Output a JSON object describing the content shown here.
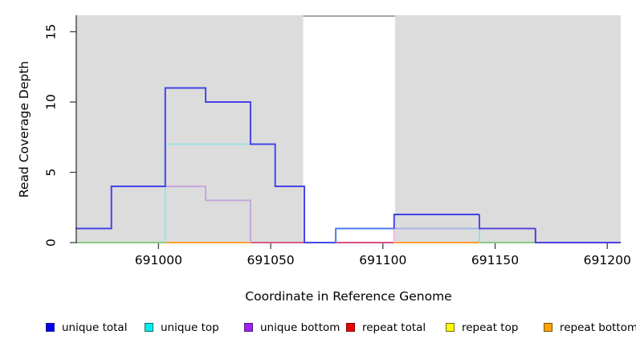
{
  "chart_data": {
    "type": "line",
    "subtype": "step-coverage",
    "title": "",
    "xlabel": "Coordinate in Reference Genome",
    "ylabel": "Read Coverage Depth",
    "xlim": [
      690963,
      691206
    ],
    "ylim": [
      0,
      16.2
    ],
    "x_ticks": [
      691000,
      691050,
      691100,
      691150,
      691200
    ],
    "y_ticks": [
      0,
      5,
      10,
      15
    ],
    "grid": false,
    "legend_position": "bottom",
    "shade_color": "#DCDCDC",
    "shaded_regions": [
      {
        "from": 690963,
        "to": 691064.5
      },
      {
        "from": 691105.4,
        "to": 691206
      }
    ],
    "gap_top_border": {
      "from": 691064.5,
      "to": 691105.4,
      "color": "#8A8A8A"
    },
    "series": [
      {
        "name": "unique total",
        "color": "#0000EE",
        "steps": [
          [
            690963,
            1
          ],
          [
            690979,
            4
          ],
          [
            691003,
            11
          ],
          [
            691021,
            10
          ],
          [
            691041,
            7
          ],
          [
            691052,
            4
          ],
          [
            691065,
            0
          ],
          [
            691079,
            1
          ],
          [
            691105,
            2
          ],
          [
            691143,
            1
          ],
          [
            691168,
            0
          ]
        ],
        "end": 691206
      },
      {
        "name": "unique top",
        "color": "#00EEEE",
        "steps": [
          [
            690963,
            0
          ],
          [
            691003,
            7
          ],
          [
            691052,
            4
          ],
          [
            691065,
            0
          ],
          [
            691105,
            1
          ],
          [
            691143,
            0
          ]
        ],
        "end": 691206
      },
      {
        "name": "unique bottom",
        "color": "#A020F0",
        "steps": [
          [
            690963,
            0
          ],
          [
            691003,
            4
          ],
          [
            691021,
            3
          ],
          [
            691041,
            0
          ],
          [
            691105,
            1
          ],
          [
            691168,
            0
          ]
        ],
        "end": 691206
      },
      {
        "name": "repeat total",
        "color": "#EE0000",
        "steps": [
          [
            690963,
            0
          ]
        ],
        "end": 691206
      },
      {
        "name": "repeat top",
        "color": "#FFFF00",
        "steps": [
          [
            690963,
            0
          ]
        ],
        "end": 691206
      },
      {
        "name": "repeat bottom",
        "color": "#FFA500",
        "steps": [
          [
            690963,
            0
          ]
        ],
        "end": 691206
      }
    ],
    "render_layers": {
      "baseline_segments": [
        {
          "from": 690963,
          "to": 691003,
          "color": "#85C985"
        },
        {
          "from": 691003,
          "to": 691041,
          "color": "#FF9E2A"
        },
        {
          "from": 691041,
          "to": 691065,
          "color": "#D06080"
        },
        {
          "from": 691079,
          "to": 691105,
          "color": "#D2537A"
        },
        {
          "from": 691105,
          "to": 691143,
          "color": "#FF9E2A"
        },
        {
          "from": 691143,
          "to": 691168,
          "color": "#85C985"
        }
      ],
      "polylines": [
        {
          "name": "unique-top-left",
          "color": "#9FE2E2",
          "points": [
            [
              691003,
              0
            ],
            [
              691003,
              7
            ],
            [
              691041,
              7
            ]
          ]
        },
        {
          "name": "unique-bottom-left",
          "color": "#C7A7DB",
          "points": [
            [
              691003,
              4
            ],
            [
              691021,
              4
            ],
            [
              691021,
              3
            ],
            [
              691041,
              3
            ],
            [
              691041,
              0
            ]
          ]
        },
        {
          "name": "unique-top-right",
          "color": "#A9B6E8",
          "points": [
            [
              691105,
              1
            ],
            [
              691143,
              1
            ]
          ]
        },
        {
          "name": "unique-top-right-drop",
          "color": "#8FE0E0",
          "points": [
            [
              691143,
              1
            ],
            [
              691143,
              0
            ]
          ]
        },
        {
          "name": "unique-bottom-right-rise",
          "color": "#ECB2E4",
          "points": [
            [
              691105,
              0
            ],
            [
              691105,
              1
            ]
          ]
        },
        {
          "name": "unique-total-main",
          "color": "#4444E8",
          "points": [
            [
              690963,
              1
            ],
            [
              690979,
              1
            ],
            [
              690979,
              4
            ],
            [
              691003,
              4
            ],
            [
              691003,
              11
            ],
            [
              691021,
              11
            ],
            [
              691021,
              10
            ],
            [
              691041,
              10
            ],
            [
              691041,
              7
            ],
            [
              691052,
              7
            ],
            [
              691052,
              4
            ],
            [
              691065,
              4
            ],
            [
              691065,
              0
            ],
            [
              691079,
              0
            ]
          ]
        },
        {
          "name": "unique-total-gap-step",
          "color": "#4D7BF2",
          "points": [
            [
              691079,
              0
            ],
            [
              691079,
              1
            ],
            [
              691105,
              1
            ]
          ]
        },
        {
          "name": "unique-total-level2",
          "color": "#4040E8",
          "points": [
            [
              691105,
              1
            ],
            [
              691105,
              2
            ],
            [
              691143,
              2
            ]
          ]
        },
        {
          "name": "unique-total-level1",
          "color": "#5746DB",
          "points": [
            [
              691143,
              2
            ],
            [
              691143,
              1
            ],
            [
              691168,
              1
            ]
          ]
        },
        {
          "name": "unique-total-tail",
          "color": "#4A3FE0",
          "points": [
            [
              691168,
              1
            ],
            [
              691168,
              0
            ],
            [
              691206,
              0
            ]
          ]
        }
      ]
    },
    "legend": [
      {
        "label": "unique total",
        "color": "#0000EE",
        "border": "#1A1A8B"
      },
      {
        "label": "unique top",
        "color": "#00EEEE",
        "border": "#0E7070"
      },
      {
        "label": "unique bottom",
        "color": "#A020F0",
        "border": "#551A8B"
      },
      {
        "label": "repeat total",
        "color": "#EE0000",
        "border": "#7A0A0A"
      },
      {
        "label": "repeat top",
        "color": "#FFFF00",
        "border": "#6E6E1E"
      },
      {
        "label": "repeat bottom",
        "color": "#FFA500",
        "border": "#7A5200"
      }
    ]
  }
}
